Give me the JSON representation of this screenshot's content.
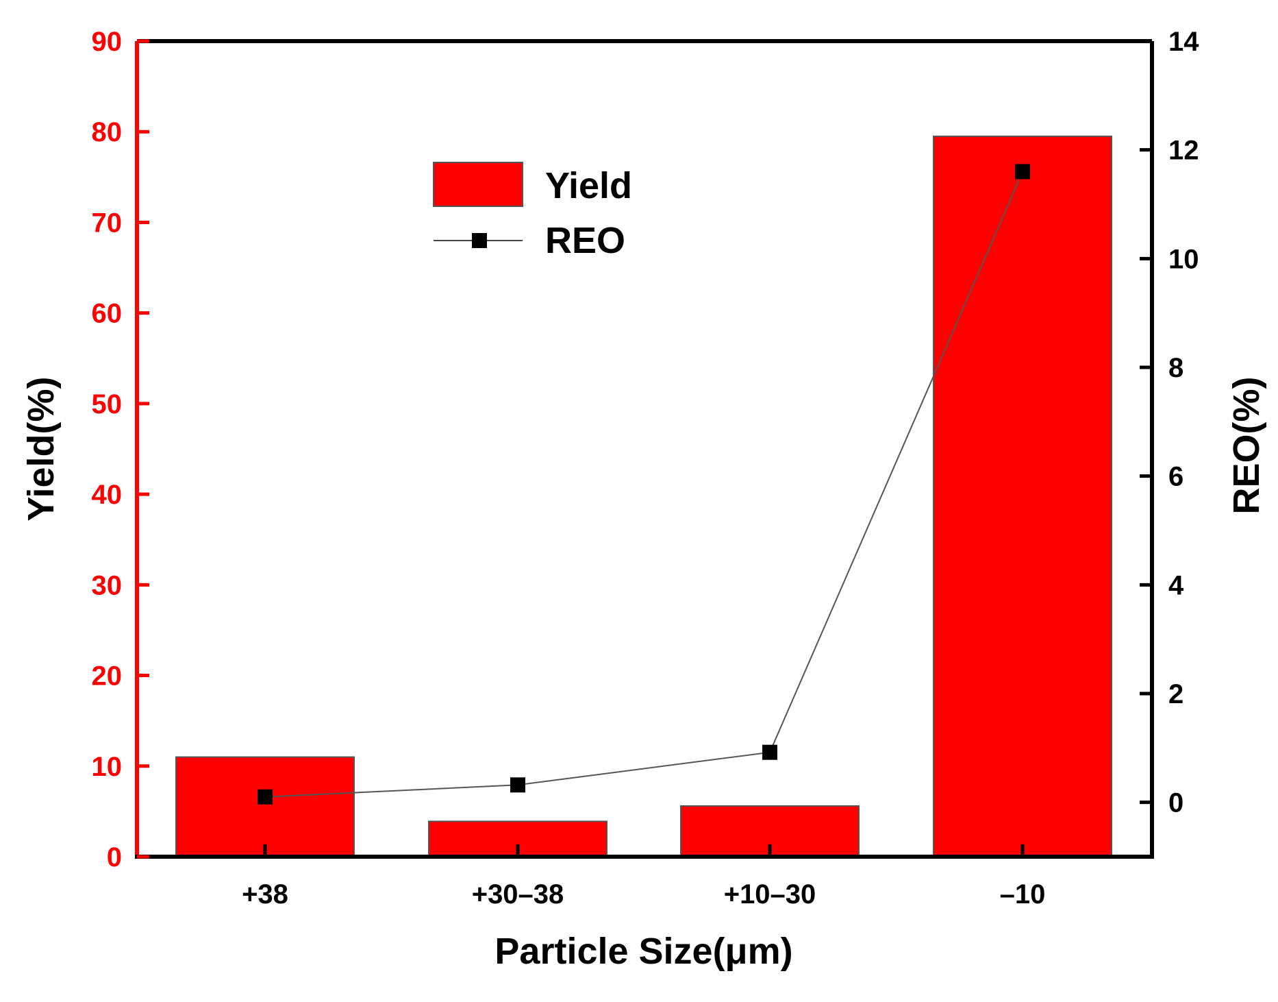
{
  "chart_data": {
    "type": "bar+line",
    "categories": [
      "+38",
      "+30–38",
      "+10–30",
      "–10"
    ],
    "series": [
      {
        "name": "Yield",
        "type": "bar",
        "axis": "left",
        "values": [
          11.0,
          3.9,
          5.6,
          79.5
        ],
        "color": "#ff0000"
      },
      {
        "name": "REO",
        "type": "line",
        "axis": "right",
        "values": [
          0.1,
          0.32,
          0.92,
          11.6
        ],
        "color": "#000000",
        "marker": "square"
      }
    ],
    "xlabel": "Particle Size(μm)",
    "ylabel_left": "Yield(%)",
    "ylabel_right": "REO(%)",
    "ylim_left": [
      0,
      90
    ],
    "ylim_right": [
      -1,
      14
    ],
    "yticks_left": [
      0,
      10,
      20,
      30,
      40,
      50,
      60,
      70,
      80,
      90
    ],
    "yticks_right": [
      0,
      2,
      4,
      6,
      8,
      10,
      12,
      14
    ],
    "left_axis_color": "#ff0000",
    "right_axis_color": "#000000",
    "grid": false,
    "legend_position": "upper-left-center",
    "legend": [
      "Yield",
      "REO"
    ]
  }
}
